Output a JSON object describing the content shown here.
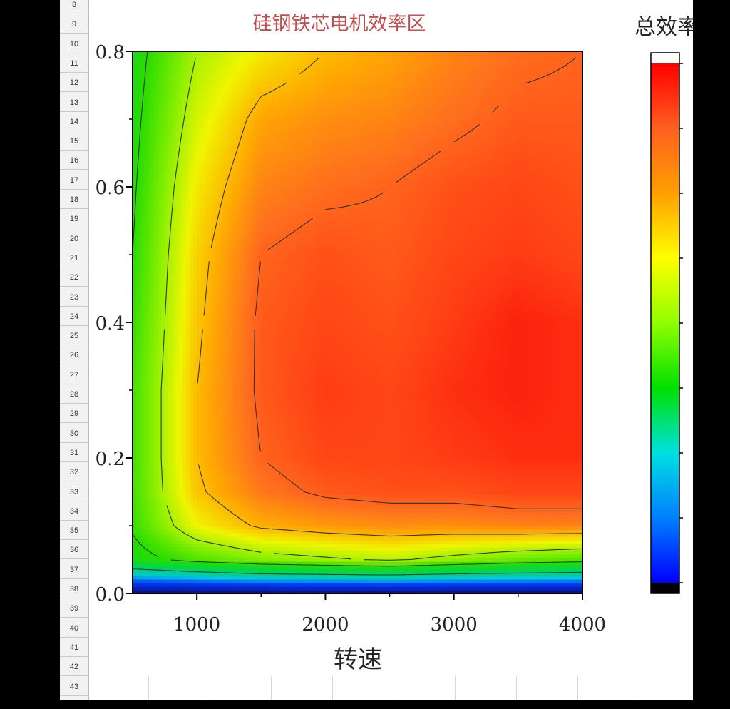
{
  "spreadsheet": {
    "row_numbers": [
      "8",
      "9",
      "10",
      "11",
      "12",
      "13",
      "14",
      "15",
      "16",
      "17",
      "18",
      "19",
      "20",
      "21",
      "22",
      "23",
      "24",
      "25",
      "26",
      "27",
      "28",
      "29",
      "30",
      "31",
      "32",
      "33",
      "34",
      "35",
      "36",
      "37",
      "38",
      "39",
      "40",
      "41",
      "42",
      "43"
    ]
  },
  "chart_data": {
    "type": "heatmap",
    "title": "硅钢铁芯电机效率区",
    "xlabel": "转速",
    "ylabel": "",
    "xlim": [
      500,
      4000
    ],
    "ylim": [
      0,
      0.8
    ],
    "x_ticks": [
      1000,
      2000,
      3000,
      4000
    ],
    "x_tick_labels": [
      "1000",
      "2000",
      "3000",
      "4000"
    ],
    "y_ticks": [
      0,
      0.2,
      0.4,
      0.6,
      0.8
    ],
    "y_tick_labels": [
      "0.0",
      "0.2",
      "0.4",
      "0.6",
      "0.8"
    ],
    "colorbar": {
      "label": "总效率",
      "colors": [
        "#000000",
        "#0000ff",
        "#0080ff",
        "#00e0e0",
        "#00e000",
        "#90ff00",
        "#ffff00",
        "#ffa000",
        "#ff6020",
        "#ff0000",
        "#ffffff"
      ]
    },
    "x": [
      500,
      1000,
      1500,
      2000,
      2500,
      3000,
      3500,
      4000
    ],
    "y": [
      0,
      0.025,
      0.05,
      0.1,
      0.15,
      0.2,
      0.3,
      0.4,
      0.5,
      0.6,
      0.7,
      0.8
    ],
    "z": [
      [
        0.0,
        0.0,
        0.0,
        0.0,
        0.0,
        0.0,
        0.0,
        0.0
      ],
      [
        0.3,
        0.33,
        0.36,
        0.37,
        0.38,
        0.36,
        0.35,
        0.34
      ],
      [
        0.52,
        0.58,
        0.62,
        0.64,
        0.66,
        0.63,
        0.6,
        0.58
      ],
      [
        0.56,
        0.7,
        0.76,
        0.78,
        0.79,
        0.79,
        0.8,
        0.8
      ],
      [
        0.57,
        0.74,
        0.81,
        0.84,
        0.85,
        0.85,
        0.86,
        0.86
      ],
      [
        0.57,
        0.75,
        0.83,
        0.86,
        0.86,
        0.87,
        0.88,
        0.88
      ],
      [
        0.57,
        0.75,
        0.84,
        0.87,
        0.86,
        0.88,
        0.89,
        0.88
      ],
      [
        0.56,
        0.74,
        0.84,
        0.86,
        0.85,
        0.87,
        0.89,
        0.88
      ],
      [
        0.55,
        0.73,
        0.83,
        0.85,
        0.84,
        0.86,
        0.87,
        0.86
      ],
      [
        0.54,
        0.71,
        0.8,
        0.82,
        0.83,
        0.85,
        0.86,
        0.85
      ],
      [
        0.53,
        0.68,
        0.77,
        0.79,
        0.8,
        0.82,
        0.84,
        0.84
      ],
      [
        0.52,
        0.65,
        0.71,
        0.75,
        0.77,
        0.8,
        0.82,
        0.83
      ]
    ],
    "contour_levels": [
      0.4,
      0.55,
      0.65,
      0.75,
      0.83
    ]
  }
}
